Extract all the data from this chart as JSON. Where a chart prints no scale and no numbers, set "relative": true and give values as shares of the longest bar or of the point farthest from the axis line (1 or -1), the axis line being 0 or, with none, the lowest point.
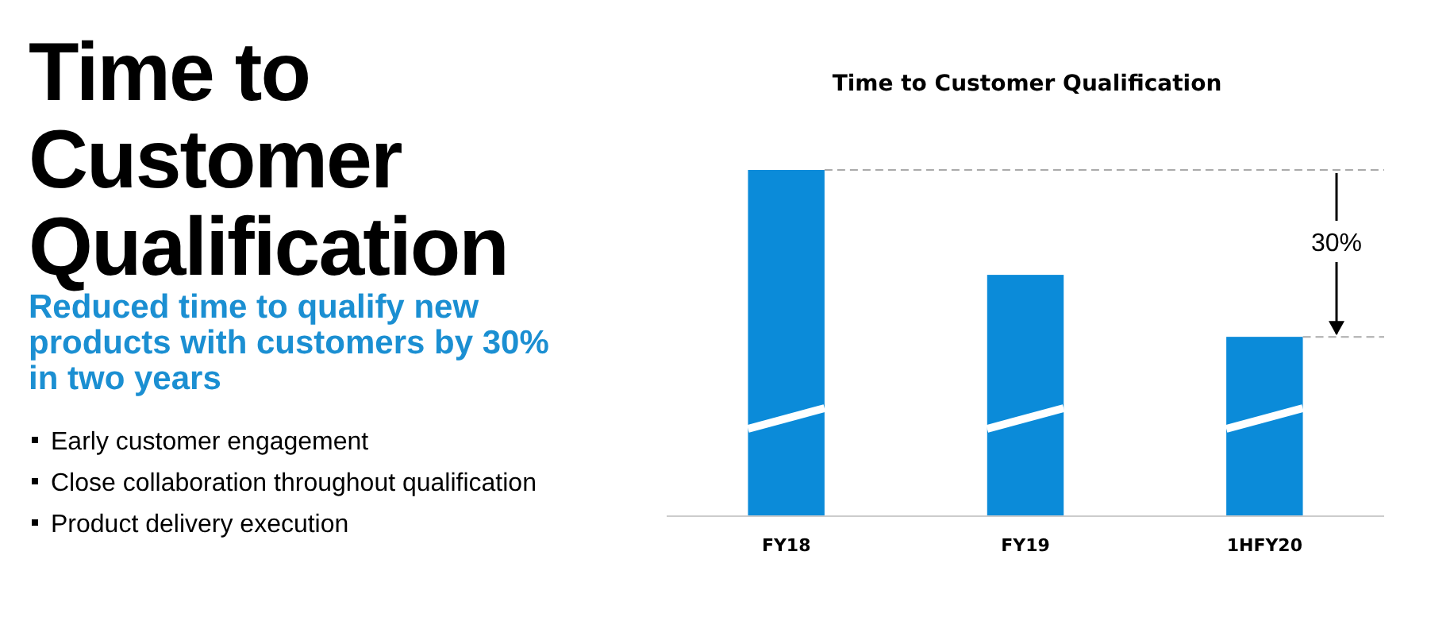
{
  "chart_data": {
    "type": "bar",
    "title": "Time to Customer Qualification",
    "subtitle": "Reduced time to qualify new products with customers by 30% in two years",
    "annotations": [
      "Time to Customer Qualification",
      "Early customer engagement",
      "Close collaboration throughout qualification",
      "Product delivery execution",
      "30%"
    ],
    "categories": [
      "FY18",
      "FY19",
      "1HFY20"
    ],
    "values": [
      1,
      0.697,
      0.518
    ],
    "color": "#0b8bd9",
    "relative": true,
    "ref_lines": [
      {
        "axis": "y",
        "value": 1,
        "color": "#aaaaaa",
        "line_style": "dashed"
      },
      {
        "axis": "y",
        "value": 0.518,
        "color": "#aaaaaa",
        "line_style": "dashed"
      }
    ]
  }
}
